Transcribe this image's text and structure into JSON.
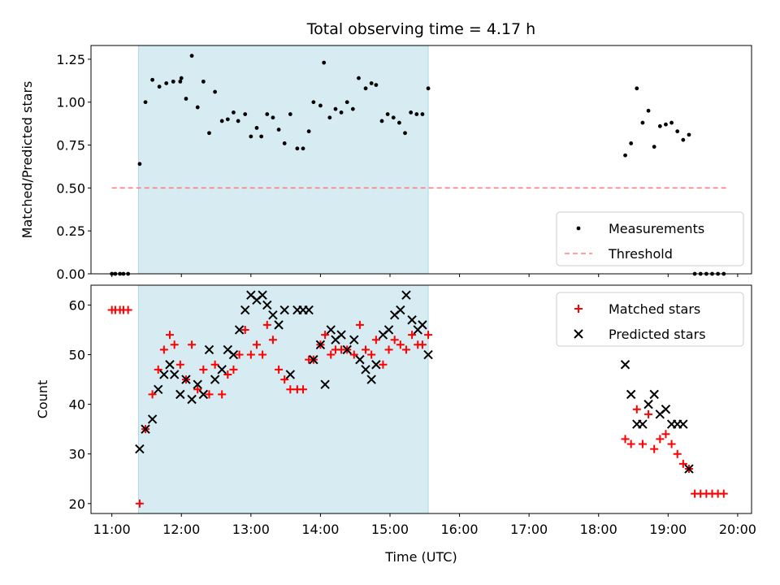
{
  "chart_data": [
    {
      "type": "scatter",
      "title": "Total observing time = 4.17 h",
      "ylabel": "Matched/Predicted stars",
      "xlabel": "",
      "xlim": [
        "10:42",
        "20:12"
      ],
      "ylim": [
        0,
        1.33
      ],
      "yticks": [
        "0.00",
        "0.25",
        "0.50",
        "0.75",
        "1.00",
        "1.25"
      ],
      "shaded_span": [
        "11:23",
        "15:33"
      ],
      "legend_position": "lower-right",
      "series": [
        {
          "name": "Measurements",
          "marker": "dot",
          "color": "#000000",
          "points": [
            [
              "11:00",
              0
            ],
            [
              "11:03",
              0
            ],
            [
              "11:07",
              0
            ],
            [
              "11:10",
              0
            ],
            [
              "11:14",
              0
            ],
            [
              "11:24",
              0.64
            ],
            [
              "11:29",
              1.0
            ],
            [
              "11:35",
              1.13
            ],
            [
              "11:41",
              1.09
            ],
            [
              "11:47",
              1.11
            ],
            [
              "11:53",
              1.12
            ],
            [
              "11:59",
              1.12
            ],
            [
              "12:00",
              1.14
            ],
            [
              "12:04",
              1.02
            ],
            [
              "12:09",
              1.27
            ],
            [
              "12:14",
              0.97
            ],
            [
              "12:19",
              1.12
            ],
            [
              "12:24",
              0.82
            ],
            [
              "12:29",
              1.06
            ],
            [
              "12:35",
              0.89
            ],
            [
              "12:40",
              0.9
            ],
            [
              "12:45",
              0.94
            ],
            [
              "12:49",
              0.89
            ],
            [
              "12:55",
              0.93
            ],
            [
              "13:00",
              0.8
            ],
            [
              "13:05",
              0.85
            ],
            [
              "13:09",
              0.8
            ],
            [
              "13:14",
              0.93
            ],
            [
              "13:19",
              0.91
            ],
            [
              "13:24",
              0.84
            ],
            [
              "13:29",
              0.76
            ],
            [
              "13:34",
              0.93
            ],
            [
              "13:40",
              0.73
            ],
            [
              "13:45",
              0.73
            ],
            [
              "13:50",
              0.83
            ],
            [
              "13:54",
              1.0
            ],
            [
              "14:00",
              0.98
            ],
            [
              "14:03",
              1.23
            ],
            [
              "14:08",
              0.91
            ],
            [
              "14:13",
              0.96
            ],
            [
              "14:18",
              0.94
            ],
            [
              "14:23",
              1.0
            ],
            [
              "14:28",
              0.96
            ],
            [
              "14:33",
              1.14
            ],
            [
              "14:39",
              1.08
            ],
            [
              "14:44",
              1.11
            ],
            [
              "14:48",
              1.1
            ],
            [
              "14:53",
              0.89
            ],
            [
              "14:58",
              0.93
            ],
            [
              "15:03",
              0.91
            ],
            [
              "15:08",
              0.88
            ],
            [
              "15:13",
              0.82
            ],
            [
              "15:18",
              0.94
            ],
            [
              "15:23",
              0.93
            ],
            [
              "15:28",
              0.93
            ],
            [
              "15:33",
              1.08
            ],
            [
              "18:23",
              0.69
            ],
            [
              "18:28",
              0.76
            ],
            [
              "18:33",
              1.08
            ],
            [
              "18:38",
              0.88
            ],
            [
              "18:43",
              0.95
            ],
            [
              "18:48",
              0.74
            ],
            [
              "18:53",
              0.86
            ],
            [
              "18:58",
              0.87
            ],
            [
              "19:03",
              0.88
            ],
            [
              "19:08",
              0.83
            ],
            [
              "19:13",
              0.78
            ],
            [
              "19:18",
              0.81
            ],
            [
              "19:23",
              0
            ],
            [
              "19:28",
              0
            ],
            [
              "19:33",
              0
            ],
            [
              "19:38",
              0
            ],
            [
              "19:43",
              0
            ],
            [
              "19:48",
              0
            ]
          ]
        },
        {
          "name": "Threshold",
          "style": "dashed",
          "color": "#ff7f7f",
          "points": [
            [
              "11:00",
              0.5
            ],
            [
              "19:50",
              0.5
            ]
          ]
        }
      ]
    },
    {
      "type": "scatter",
      "title": "",
      "ylabel": "Count",
      "xlabel": "Time (UTC)",
      "xlim": [
        "10:42",
        "20:12"
      ],
      "ylim": [
        18,
        64
      ],
      "yticks": [
        "20",
        "30",
        "40",
        "50",
        "60"
      ],
      "xticks": [
        "11:00",
        "12:00",
        "13:00",
        "14:00",
        "15:00",
        "16:00",
        "17:00",
        "18:00",
        "19:00",
        "20:00"
      ],
      "shaded_span": [
        "11:23",
        "15:33"
      ],
      "legend_position": "upper-right",
      "series": [
        {
          "name": "Matched stars",
          "marker": "plus",
          "color": "#ff0000",
          "points": [
            [
              "11:00",
              59
            ],
            [
              "11:03",
              59
            ],
            [
              "11:07",
              59
            ],
            [
              "11:10",
              59
            ],
            [
              "11:14",
              59
            ],
            [
              "11:24",
              20
            ],
            [
              "11:29",
              35
            ],
            [
              "11:35",
              42
            ],
            [
              "11:40",
              47
            ],
            [
              "11:45",
              51
            ],
            [
              "11:50",
              54
            ],
            [
              "11:54",
              52
            ],
            [
              "11:59",
              48
            ],
            [
              "12:04",
              45
            ],
            [
              "12:09",
              52
            ],
            [
              "12:14",
              43
            ],
            [
              "12:19",
              47
            ],
            [
              "12:24",
              42
            ],
            [
              "12:29",
              48
            ],
            [
              "12:35",
              42
            ],
            [
              "12:40",
              46
            ],
            [
              "12:45",
              47
            ],
            [
              "12:50",
              50
            ],
            [
              "12:55",
              55
            ],
            [
              "13:00",
              50
            ],
            [
              "13:05",
              52
            ],
            [
              "13:10",
              50
            ],
            [
              "13:14",
              56
            ],
            [
              "13:19",
              53
            ],
            [
              "13:24",
              47
            ],
            [
              "13:29",
              45
            ],
            [
              "13:34",
              43
            ],
            [
              "13:40",
              43
            ],
            [
              "13:45",
              43
            ],
            [
              "13:50",
              49
            ],
            [
              "13:54",
              49
            ],
            [
              "14:00",
              52
            ],
            [
              "14:04",
              54
            ],
            [
              "14:09",
              50
            ],
            [
              "14:13",
              51
            ],
            [
              "14:18",
              51
            ],
            [
              "14:23",
              51
            ],
            [
              "14:29",
              50
            ],
            [
              "14:34",
              56
            ],
            [
              "14:39",
              51
            ],
            [
              "14:44",
              50
            ],
            [
              "14:48",
              53
            ],
            [
              "14:54",
              48
            ],
            [
              "14:59",
              51
            ],
            [
              "15:04",
              53
            ],
            [
              "15:09",
              52
            ],
            [
              "15:14",
              51
            ],
            [
              "15:19",
              54
            ],
            [
              "15:24",
              52
            ],
            [
              "15:28",
              52
            ],
            [
              "15:33",
              54
            ],
            [
              "18:23",
              33
            ],
            [
              "18:28",
              32
            ],
            [
              "18:33",
              39
            ],
            [
              "18:38",
              32
            ],
            [
              "18:43",
              38
            ],
            [
              "18:48",
              31
            ],
            [
              "18:53",
              33
            ],
            [
              "18:58",
              34
            ],
            [
              "19:03",
              32
            ],
            [
              "19:08",
              30
            ],
            [
              "19:13",
              28
            ],
            [
              "19:18",
              27
            ],
            [
              "19:23",
              22
            ],
            [
              "19:28",
              22
            ],
            [
              "19:33",
              22
            ],
            [
              "19:38",
              22
            ],
            [
              "19:43",
              22
            ],
            [
              "19:48",
              22
            ]
          ]
        },
        {
          "name": "Predicted stars",
          "marker": "x",
          "color": "#000000",
          "points": [
            [
              "11:24",
              31
            ],
            [
              "11:29",
              35
            ],
            [
              "11:35",
              37
            ],
            [
              "11:40",
              43
            ],
            [
              "11:45",
              46
            ],
            [
              "11:50",
              48
            ],
            [
              "11:54",
              46
            ],
            [
              "11:59",
              42
            ],
            [
              "12:04",
              45
            ],
            [
              "12:09",
              41
            ],
            [
              "12:14",
              44
            ],
            [
              "12:19",
              42
            ],
            [
              "12:24",
              51
            ],
            [
              "12:29",
              45
            ],
            [
              "12:35",
              47
            ],
            [
              "12:40",
              51
            ],
            [
              "12:45",
              50
            ],
            [
              "12:50",
              55
            ],
            [
              "12:55",
              59
            ],
            [
              "13:00",
              62
            ],
            [
              "13:05",
              61
            ],
            [
              "13:10",
              62
            ],
            [
              "13:14",
              60
            ],
            [
              "13:19",
              58
            ],
            [
              "13:24",
              56
            ],
            [
              "13:29",
              59
            ],
            [
              "13:34",
              46
            ],
            [
              "13:40",
              59
            ],
            [
              "13:45",
              59
            ],
            [
              "13:50",
              59
            ],
            [
              "13:54",
              49
            ],
            [
              "14:00",
              52
            ],
            [
              "14:04",
              44
            ],
            [
              "14:09",
              55
            ],
            [
              "14:13",
              53
            ],
            [
              "14:18",
              54
            ],
            [
              "14:23",
              51
            ],
            [
              "14:29",
              53
            ],
            [
              "14:34",
              49
            ],
            [
              "14:39",
              47
            ],
            [
              "14:44",
              45
            ],
            [
              "14:48",
              48
            ],
            [
              "14:54",
              54
            ],
            [
              "14:59",
              55
            ],
            [
              "15:04",
              58
            ],
            [
              "15:09",
              59
            ],
            [
              "15:14",
              62
            ],
            [
              "15:19",
              57
            ],
            [
              "15:24",
              55
            ],
            [
              "15:28",
              56
            ],
            [
              "15:33",
              50
            ],
            [
              "18:23",
              48
            ],
            [
              "18:28",
              42
            ],
            [
              "18:33",
              36
            ],
            [
              "18:38",
              36
            ],
            [
              "18:43",
              40
            ],
            [
              "18:48",
              42
            ],
            [
              "18:53",
              38
            ],
            [
              "18:58",
              39
            ],
            [
              "19:03",
              36
            ],
            [
              "19:08",
              36
            ],
            [
              "19:13",
              36
            ],
            [
              "19:18",
              27
            ]
          ]
        }
      ]
    }
  ]
}
